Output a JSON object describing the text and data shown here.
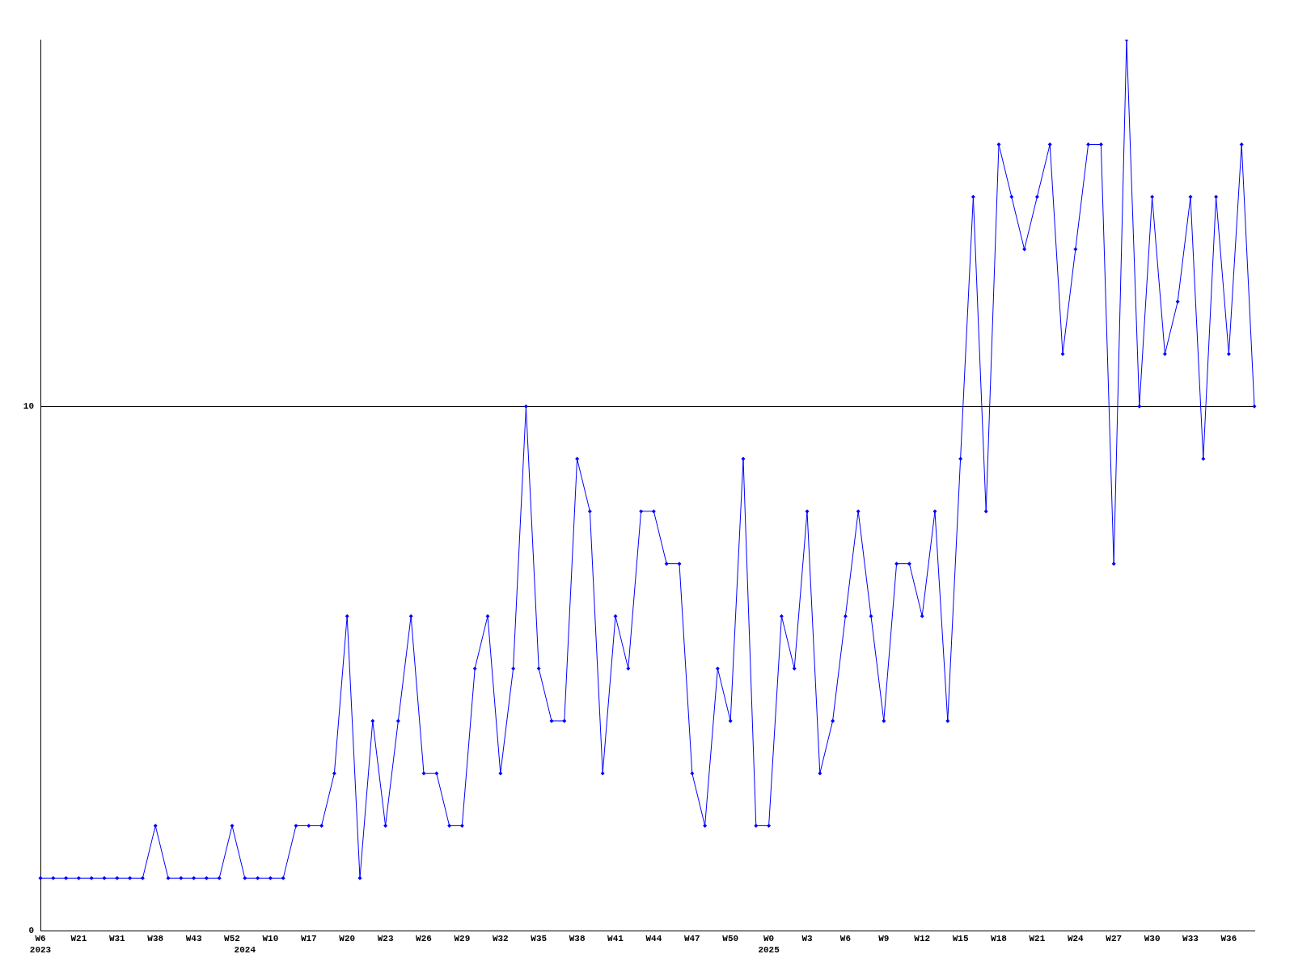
{
  "chart_data": {
    "type": "line",
    "categories": [
      "W6\n2023",
      null,
      null,
      "W21",
      null,
      null,
      "W31",
      null,
      null,
      "W38",
      null,
      null,
      "W43",
      null,
      null,
      "W52",
      "\n2024",
      null,
      "W10",
      null,
      null,
      "W17",
      null,
      null,
      "W20",
      null,
      null,
      "W23",
      null,
      null,
      "W26",
      null,
      null,
      "W29",
      null,
      null,
      "W32",
      null,
      null,
      "W35",
      null,
      null,
      "W38",
      null,
      null,
      "W41",
      null,
      null,
      "W44",
      null,
      null,
      "W47",
      null,
      null,
      "W50",
      null,
      null,
      "W0\n2025",
      null,
      null,
      "W3",
      null,
      null,
      "W6",
      null,
      null,
      "W9",
      null,
      null,
      "W12",
      null,
      null,
      "W15",
      null,
      null,
      "W18",
      null,
      null,
      "W21",
      null,
      null,
      "W24",
      null,
      null,
      "W27",
      null,
      null,
      "W30",
      null,
      null,
      "W33",
      null,
      null,
      "W36",
      null,
      null
    ],
    "series": [
      {
        "color": "#0000ff",
        "values": [
          1,
          1,
          1,
          1,
          1,
          1,
          1,
          1,
          1,
          2,
          1,
          1,
          1,
          1,
          1,
          2,
          1,
          1,
          1,
          1,
          2,
          2,
          2,
          3,
          6,
          1,
          4,
          2,
          4,
          6,
          3,
          3,
          2,
          2,
          5,
          6,
          3,
          5,
          10,
          5,
          4,
          4,
          9,
          8,
          3,
          6,
          5,
          8,
          8,
          7,
          7,
          3,
          2,
          5,
          4,
          9,
          2,
          2,
          6,
          5,
          8,
          3,
          4,
          6,
          8,
          6,
          4,
          7,
          7,
          6,
          8,
          4,
          9,
          14,
          8,
          15,
          14,
          13,
          14,
          15,
          11,
          13,
          15,
          15,
          7,
          17,
          10,
          14,
          11,
          12,
          14,
          9,
          14,
          11,
          15,
          10
        ]
      }
    ],
    "ylim": [
      0,
      17
    ],
    "yticks": [
      0,
      10
    ],
    "grid": "y",
    "marker": "diamond",
    "line_style": "solid",
    "legend": false
  }
}
